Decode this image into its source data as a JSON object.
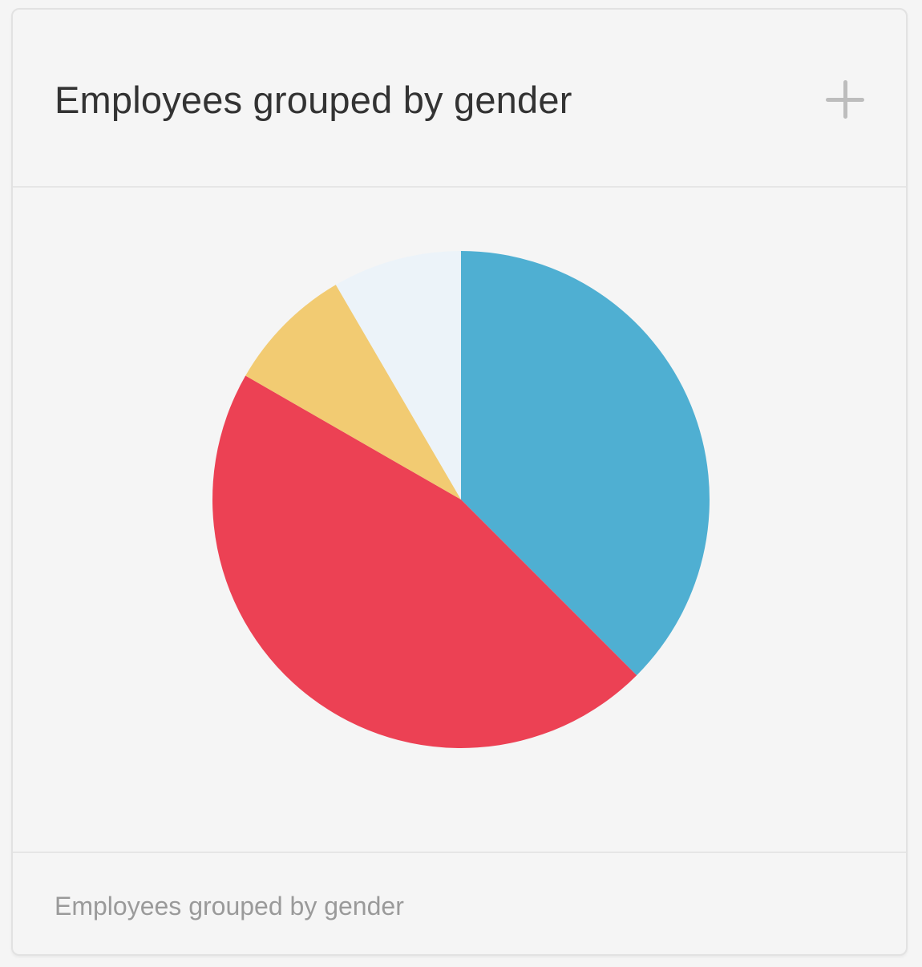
{
  "card": {
    "title": "Employees grouped by gender",
    "add_icon": "plus-icon",
    "footer_caption": "Employees grouped by gender"
  },
  "chart_data": {
    "type": "pie",
    "title": "Employees grouped by gender",
    "slices": [
      {
        "value": 37.5,
        "color": "#4fafd2"
      },
      {
        "value": 45.8,
        "color": "#ec4154"
      },
      {
        "value": 8.3,
        "color": "#f2cb72"
      },
      {
        "value": 8.4,
        "color": "#ecf3f9"
      }
    ],
    "start_angle_deg": 0,
    "direction": "clockwise",
    "legend": "none"
  }
}
